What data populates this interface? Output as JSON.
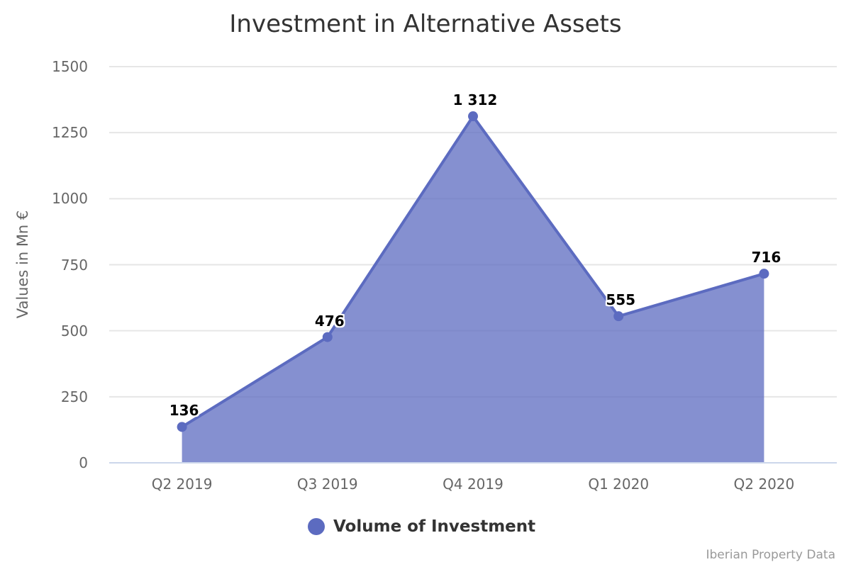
{
  "chart_data": {
    "type": "area",
    "title": "Investment in Alternative Assets",
    "xlabel": "",
    "ylabel": "Values in Mn €",
    "categories": [
      "Q2 2019",
      "Q3 2019",
      "Q4 2019",
      "Q1 2020",
      "Q2 2020"
    ],
    "series": [
      {
        "name": "Volume of Investment",
        "values": [
          136,
          476,
          1312,
          555,
          716
        ],
        "data_labels": [
          "136",
          "476",
          "1 312",
          "555",
          "716"
        ],
        "color": "#5c6bc0"
      }
    ],
    "ylim": [
      0,
      1500
    ],
    "yticks": [
      "0",
      "250",
      "500",
      "750",
      "1000",
      "1250",
      "1500"
    ],
    "grid": true,
    "legend_position": "bottom"
  },
  "credits": "Iberian Property Data"
}
